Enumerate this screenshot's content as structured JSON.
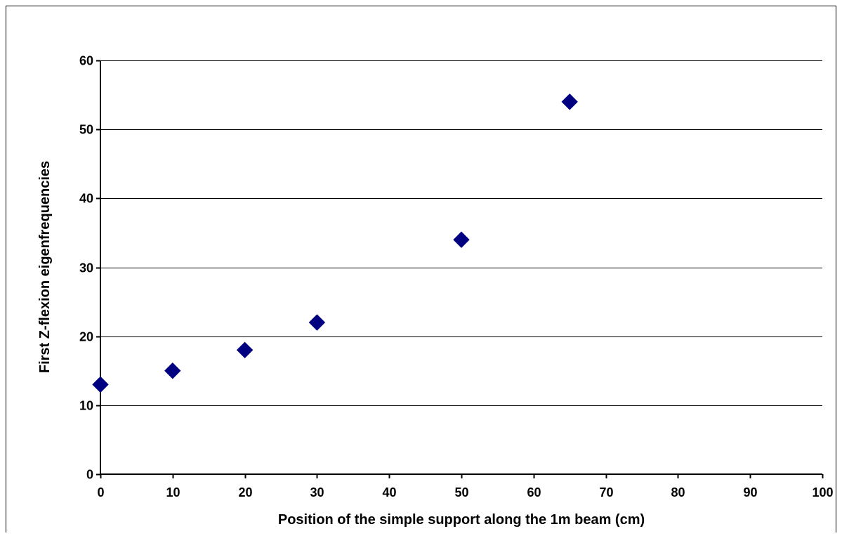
{
  "chart_data": {
    "type": "scatter",
    "title": "",
    "xlabel": "Position of the simple support along the 1m beam (cm)",
    "ylabel": "First Z-flexion eigenfrequencies",
    "xlim": [
      0,
      100
    ],
    "ylim": [
      0,
      60
    ],
    "x_ticks": [
      0,
      10,
      20,
      30,
      40,
      50,
      60,
      70,
      80,
      90,
      100
    ],
    "y_ticks": [
      0,
      10,
      20,
      30,
      40,
      50,
      60
    ],
    "grid": "horizontal",
    "legend": "none",
    "marker": "diamond",
    "marker_color": "#000080",
    "series": [
      {
        "points": [
          {
            "x": 0,
            "y": 13
          },
          {
            "x": 10,
            "y": 15
          },
          {
            "x": 20,
            "y": 18
          },
          {
            "x": 30,
            "y": 22
          },
          {
            "x": 50,
            "y": 34
          },
          {
            "x": 65,
            "y": 54
          }
        ]
      }
    ]
  }
}
